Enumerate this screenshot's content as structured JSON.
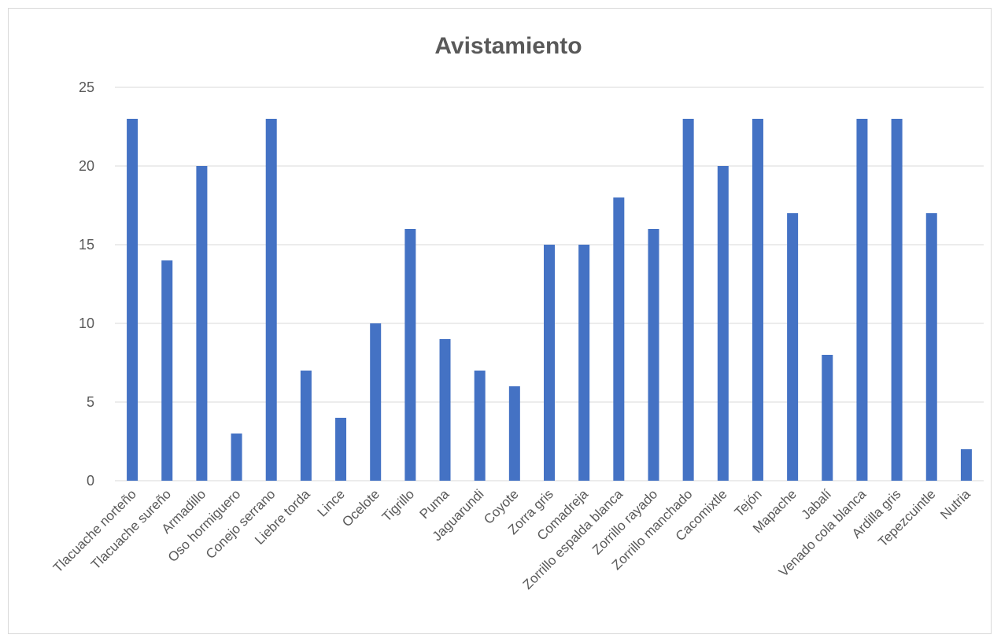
{
  "chart_data": {
    "type": "bar",
    "title": "Avistamiento",
    "xlabel": "",
    "ylabel": "",
    "ylim": [
      0,
      25
    ],
    "yticks": [
      0,
      5,
      10,
      15,
      20,
      25
    ],
    "grid": true,
    "legend": "none",
    "bar_color": "#4472c4",
    "categories": [
      "Tlacuache norteño",
      "Tlacuache sureño",
      "Armadillo",
      "Oso hormiguero",
      "Conejo serrano",
      "Liebre torda",
      "Lince",
      "Ocelote",
      "Tigrillo",
      "Puma",
      "Jaguarundi",
      "Coyote",
      "Zorra gris",
      "Comadreja",
      "Zorrillo espalda blanca",
      "Zorrillo rayado",
      "Zorrillo manchado",
      "Cacomixtle",
      "Tejón",
      "Mapache",
      "Jabalí",
      "Venado cola blanca",
      "Ardilla gris",
      "Tepezcuintle",
      "Nutria"
    ],
    "values": [
      23,
      14,
      20,
      3,
      23,
      7,
      4,
      10,
      16,
      9,
      7,
      6,
      15,
      15,
      18,
      16,
      23,
      20,
      23,
      17,
      8,
      23,
      23,
      17,
      2
    ]
  }
}
